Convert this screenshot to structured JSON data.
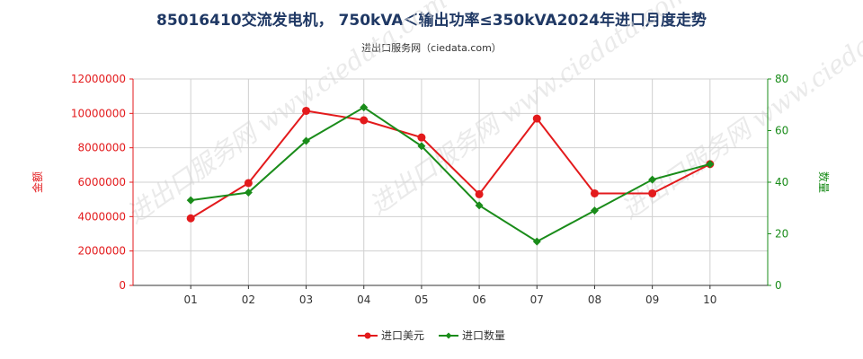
{
  "title": "85016410交流发电机， 750kVA＜输出功率≤350kVA2024年进口月度走势",
  "subtitle": "进出口服务网（ciedata.com）",
  "colors": {
    "amount": "#e31a1c",
    "quantity": "#1a8c1a",
    "grid": "#d0d0d0",
    "title": "#1f3864",
    "watermark": "#dcdcdc"
  },
  "watermark": {
    "text": "进出口服务网 www.ciedata.com",
    "repeat_count": 3
  },
  "chart_data": {
    "type": "line",
    "categories": [
      "01",
      "02",
      "03",
      "04",
      "05",
      "06",
      "07",
      "08",
      "09",
      "10"
    ],
    "series": [
      {
        "name": "进口美元",
        "axis": "left",
        "values": [
          3900000,
          5950000,
          10150000,
          9600000,
          8600000,
          5300000,
          9700000,
          5350000,
          5350000,
          7050000
        ]
      },
      {
        "name": "进口数量",
        "axis": "right",
        "values": [
          33,
          36,
          56,
          69,
          54,
          31,
          17,
          29,
          41,
          47
        ]
      }
    ],
    "y_left": {
      "label": "金额",
      "range": [
        0,
        12000000
      ],
      "ticks": [
        "0",
        "2000000",
        "4000000",
        "6000000",
        "8000000",
        "10000000",
        "12000000"
      ]
    },
    "y_right": {
      "label": "数量",
      "range": [
        0,
        80
      ],
      "ticks": [
        "0",
        "20",
        "40",
        "60",
        "80"
      ]
    },
    "grid": true,
    "legend_position": "bottom"
  }
}
